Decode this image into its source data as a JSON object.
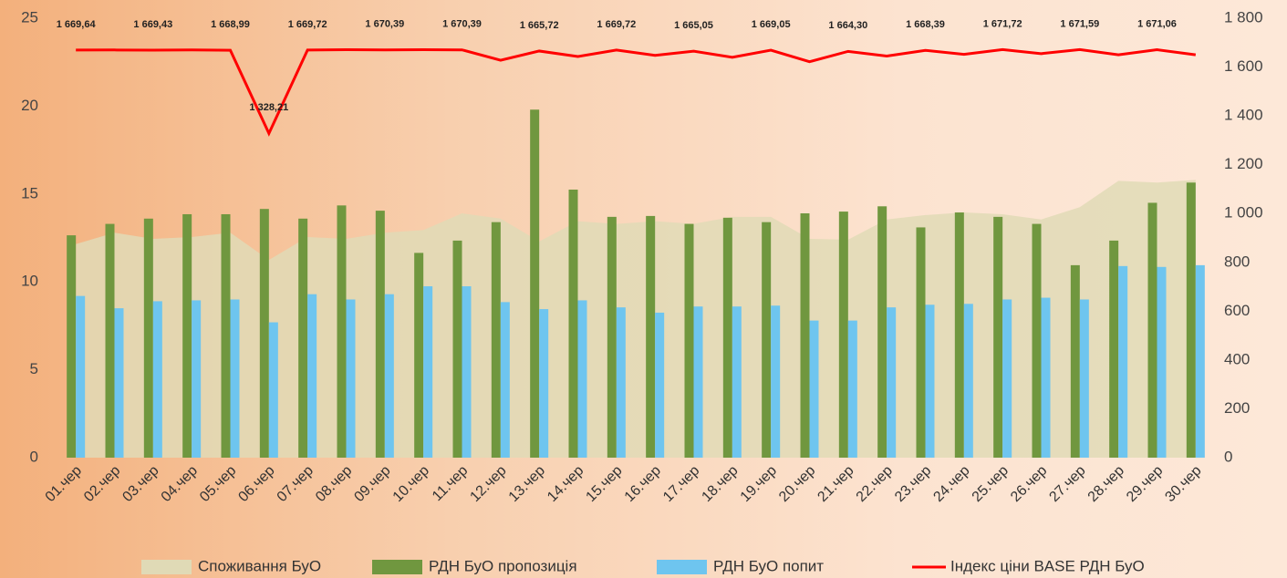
{
  "chart_data": {
    "type": "bar",
    "categories": [
      "01.чер",
      "02.чер",
      "03.чер",
      "04.чер",
      "05.чер",
      "06.чер",
      "07.чер",
      "08.чер",
      "09.чер",
      "10.чер",
      "11.чер",
      "12.чер",
      "13.чер",
      "14.чер",
      "15.чер",
      "16.чер",
      "17.чер",
      "18.чер",
      "19.чер",
      "20.чер",
      "21.чер",
      "22.чер",
      "23.чер",
      "24.чер",
      "25.чер",
      "26.чер",
      "27.чер",
      "28.чер",
      "29.чер",
      "30.чер"
    ],
    "ylim": [
      0,
      25
    ],
    "yticks": [
      0,
      5,
      10,
      15,
      20,
      25
    ],
    "y2lim": [
      0,
      1800
    ],
    "y2ticks": [
      0,
      200,
      400,
      600,
      800,
      {
        "value": 1000,
        "label": "1 000"
      },
      {
        "value": 1200,
        "label": "1 200"
      },
      {
        "value": 1400,
        "label": "1 400"
      },
      {
        "value": 1600,
        "label": "1 600"
      },
      {
        "value": 1800,
        "label": "1 800"
      }
    ],
    "grid": false,
    "legend": "bottom",
    "series": [
      {
        "name": "Споживання БуО",
        "type": "area",
        "color": "#e0dab6",
        "values": [
          12.15,
          12.8,
          12.45,
          12.55,
          12.8,
          11.25,
          12.55,
          12.45,
          12.8,
          12.95,
          13.9,
          13.6,
          12.3,
          13.45,
          13.3,
          13.45,
          13.3,
          13.7,
          13.7,
          12.45,
          12.4,
          13.55,
          13.8,
          13.95,
          13.85,
          13.55,
          14.25,
          15.75,
          15.65,
          15.8
        ]
      },
      {
        "name": "РДН БуО пропозиція",
        "type": "bar",
        "color": "#70973f",
        "values": [
          12.65,
          13.3,
          13.6,
          13.85,
          13.85,
          14.15,
          13.6,
          14.35,
          14.05,
          11.65,
          12.35,
          13.4,
          19.8,
          15.25,
          13.7,
          13.75,
          13.3,
          13.65,
          13.4,
          13.9,
          14.0,
          14.3,
          13.1,
          13.95,
          13.7,
          13.3,
          10.95,
          12.35,
          14.5,
          15.65
        ]
      },
      {
        "name": "РДН БуО попит",
        "type": "bar",
        "color": "#6ec5ef",
        "values": [
          9.2,
          8.5,
          8.9,
          8.95,
          9.0,
          7.7,
          9.3,
          9.0,
          9.3,
          9.75,
          9.75,
          8.85,
          8.45,
          8.95,
          8.55,
          8.25,
          8.6,
          8.6,
          8.65,
          7.8,
          7.8,
          8.55,
          8.7,
          8.75,
          9.0,
          9.1,
          9.0,
          10.9,
          10.85,
          10.95
        ]
      },
      {
        "name": "Індекс ціни BASE РДН БуО",
        "type": "line",
        "axis": "y2",
        "color": "#ff0000",
        "values": [
          1669.64,
          1670,
          1669.43,
          1670,
          1668.99,
          1328.21,
          1669.72,
          1671,
          1670.39,
          1671,
          1670.39,
          1628,
          1665.72,
          1643,
          1669.72,
          1648,
          1665.05,
          1640,
          1669.05,
          1622,
          1664.3,
          1645,
          1668.39,
          1652,
          1671.72,
          1655,
          1671.59,
          1650,
          1671.06,
          1650
        ],
        "value_labels": [
          "1 669,64",
          null,
          "1 669,43",
          null,
          "1 668,99",
          "1 328,21",
          "1 669,72",
          null,
          "1 670,39",
          null,
          "1 670,39",
          null,
          "1 665,72",
          null,
          "1 669,72",
          null,
          "1 665,05",
          null,
          "1 669,05",
          null,
          "1 664,30",
          null,
          "1 668,39",
          null,
          "1 671,72",
          null,
          "1 671,59",
          null,
          "1 671,06",
          null
        ]
      }
    ]
  }
}
